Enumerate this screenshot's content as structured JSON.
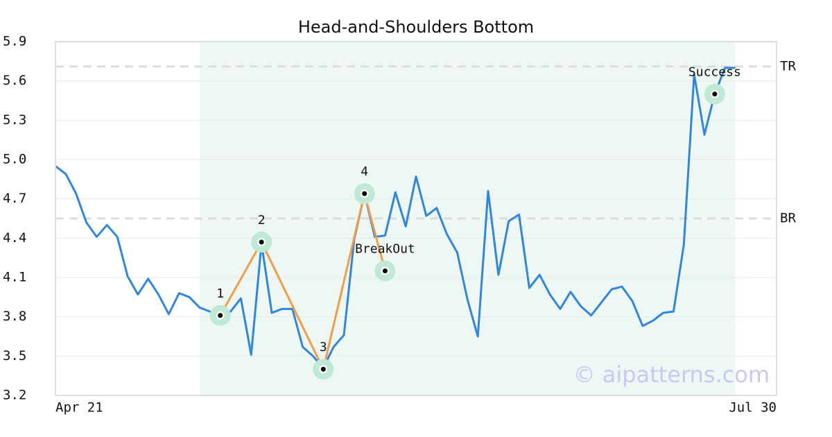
{
  "chart_data": {
    "type": "line",
    "title": "Head-and-Shoulders Bottom",
    "categories": [
      "Apr 21",
      null,
      null,
      null,
      null,
      null,
      null,
      null,
      null,
      null,
      null,
      null,
      null,
      null,
      null,
      null,
      null,
      null,
      null,
      null,
      null,
      null,
      null,
      null,
      null,
      null,
      null,
      null,
      null,
      null,
      null,
      null,
      null,
      null,
      null,
      null,
      null,
      null,
      null,
      null,
      null,
      null,
      null,
      null,
      null,
      null,
      null,
      null,
      null,
      null,
      null,
      null,
      null,
      null,
      null,
      null,
      null,
      null,
      null,
      null,
      null,
      null,
      null,
      null,
      null,
      null,
      null,
      null,
      null,
      null,
      "Jul 30"
    ],
    "series": [
      {
        "color": "#2e86de",
        "values": [
          4.95,
          4.89,
          4.74,
          4.52,
          4.41,
          4.5,
          4.41,
          4.11,
          3.97,
          4.09,
          3.97,
          3.82,
          3.98,
          3.95,
          3.87,
          3.84,
          3.81,
          3.84,
          3.94,
          3.51,
          4.36,
          3.83,
          3.86,
          3.86,
          3.57,
          3.5,
          3.41,
          3.57,
          3.66,
          4.39,
          4.74,
          4.41,
          4.42,
          4.75,
          4.49,
          4.87,
          4.57,
          4.63,
          4.43,
          4.29,
          3.93,
          3.65,
          4.76,
          4.12,
          4.53,
          4.58,
          4.02,
          4.12,
          3.97,
          3.86,
          3.99,
          3.88,
          3.81,
          3.91,
          4.01,
          4.03,
          3.92,
          3.73,
          3.77,
          3.83,
          3.84,
          4.35,
          5.65,
          5.19,
          5.5,
          5.7,
          5.7,
          null,
          null,
          null,
          null
        ]
      }
    ],
    "pattern": {
      "color": "#f39c44",
      "points": [
        {
          "label": "1",
          "index": 16,
          "value": 3.81
        },
        {
          "label": "2",
          "index": 20,
          "value": 4.37
        },
        {
          "label": "3",
          "index": 26,
          "value": 3.4
        },
        {
          "label": "4",
          "index": 30,
          "value": 4.74
        },
        {
          "label": "BreakOut",
          "index": 32,
          "value": 4.15
        }
      ]
    },
    "success": {
      "label": "Success",
      "index": 64,
      "value": 5.5
    },
    "levels": [
      {
        "label": "TR",
        "value": 5.71
      },
      {
        "label": "BR",
        "value": 4.55
      }
    ],
    "shade": {
      "from": 14,
      "to": 66,
      "color": "#eef7f3"
    },
    "watermark": "© aipatterns.com",
    "ylim": [
      3.2,
      5.9
    ],
    "yticks": [
      {
        "value": 3.2,
        "label": "3.2"
      },
      {
        "value": 3.5,
        "label": "3.5"
      },
      {
        "value": 3.8,
        "label": "3.8"
      },
      {
        "value": 4.1,
        "label": "4.1"
      },
      {
        "value": 4.4,
        "label": "4.4"
      },
      {
        "value": 4.7,
        "label": "4.7"
      },
      {
        "value": 5.0,
        "label": "5.0"
      },
      {
        "value": 5.3,
        "label": "5.3"
      },
      {
        "value": 5.6,
        "label": "5.6"
      },
      {
        "value": 5.9,
        "label": "5.9"
      }
    ],
    "grid": true
  }
}
